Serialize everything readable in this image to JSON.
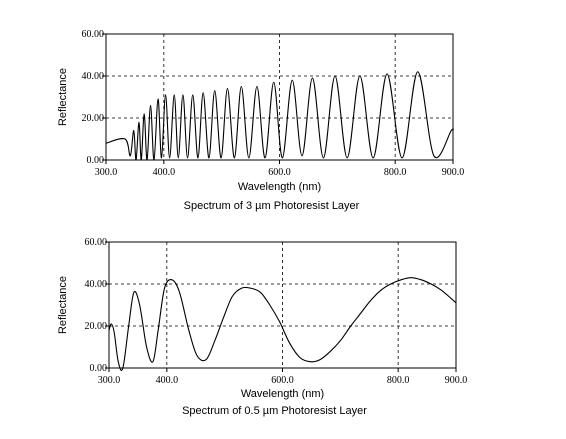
{
  "chart_data": [
    {
      "type": "line",
      "caption": "Spectrum of 3 µm Photoresist Layer",
      "xlabel": "Wavelength (nm)",
      "ylabel": "Reflectance",
      "xlim": [
        300,
        900
      ],
      "ylim": [
        0,
        60
      ],
      "xticks": [
        "300.0",
        "400.0",
        "600.0",
        "800.0",
        "900.0"
      ],
      "xtick_values": [
        300,
        400,
        600,
        800,
        900
      ],
      "yticks": [
        "0.00",
        "20.00",
        "40.00",
        "60.00"
      ],
      "ytick_values": [
        0,
        20,
        40,
        60
      ],
      "grid": "dashed at x=400,600,800 and y=20,40",
      "series": [
        {
          "x": [
            300,
            333,
            342,
            348,
            352,
            357,
            361,
            366,
            371,
            377,
            383,
            390,
            396,
            403,
            410,
            418,
            425,
            433,
            441,
            450,
            459,
            468,
            478,
            488,
            499,
            510,
            522,
            534,
            547,
            561,
            575,
            590,
            605,
            622,
            639,
            657,
            676,
            696,
            717,
            739,
            762,
            786,
            812,
            839,
            867,
            897,
            900
          ],
          "y": [
            8,
            10,
            2,
            14,
            0,
            18,
            0,
            22,
            0,
            26,
            0,
            29,
            1,
            31,
            1,
            31,
            1,
            31,
            1,
            31,
            1,
            32,
            1,
            33,
            1,
            34,
            1,
            35,
            1,
            35,
            1,
            37,
            1,
            38,
            2,
            39,
            1,
            40,
            1,
            40,
            1,
            41,
            1,
            42,
            2,
            14,
            14
          ]
        }
      ]
    },
    {
      "type": "line",
      "caption": "Spectrum of 0.5 µm Photoresist Layer",
      "xlabel": "Wavelength (nm)",
      "ylabel": "Reflectance",
      "xlim": [
        300,
        900
      ],
      "ylim": [
        0,
        60
      ],
      "xticks": [
        "300.0",
        "400.0",
        "600.0",
        "800.0",
        "900.0"
      ],
      "xtick_values": [
        300,
        400,
        600,
        800,
        900
      ],
      "yticks": [
        "0.00",
        "20.00",
        "40.00",
        "60.00"
      ],
      "ytick_values": [
        0,
        20,
        40,
        60
      ],
      "grid": "dashed at x=400,600,800 and y=20,40",
      "series": [
        {
          "x": [
            300,
            304,
            309,
            316,
            324,
            334,
            343,
            353,
            365,
            376,
            385,
            396,
            409,
            422,
            438,
            452,
            468,
            483,
            498,
            513,
            529,
            545,
            562,
            578,
            595,
            612,
            630,
            648,
            665,
            683,
            700,
            718,
            735,
            752,
            770,
            787,
            805,
            822,
            840,
            857,
            875,
            892,
            900
          ],
          "y": [
            18,
            21,
            17,
            3,
            0,
            20,
            36,
            30,
            10,
            3,
            18,
            38,
            42,
            36,
            18,
            6,
            4,
            13,
            24,
            34,
            38,
            38,
            36,
            30,
            22,
            12,
            5,
            3,
            4,
            8,
            13,
            20,
            26,
            32,
            37,
            40,
            42,
            43,
            42,
            40,
            37,
            33,
            31
          ]
        }
      ]
    }
  ]
}
